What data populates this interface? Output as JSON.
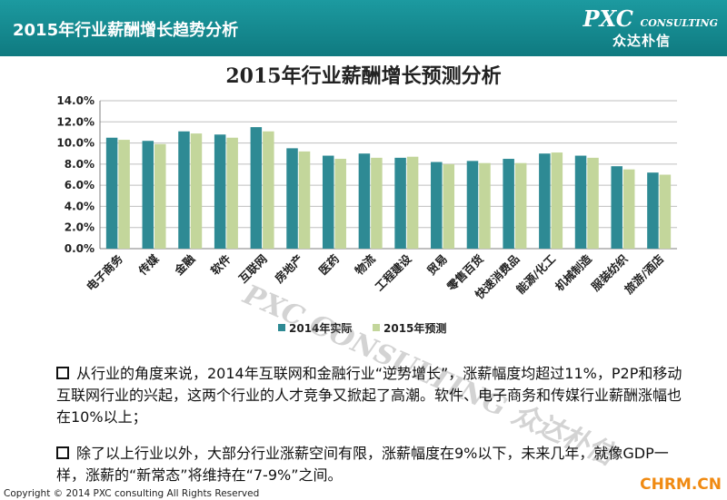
{
  "header": {
    "title": "2015年行业薪酬增长趋势分析",
    "logo_main": "PXC",
    "logo_tag": "CONSULTING",
    "logo_sub": "众达朴信"
  },
  "chart_data": {
    "type": "bar",
    "title": "2015年行业薪酬增长预测分析",
    "xlabel": "",
    "ylabel": "",
    "ylim": [
      0,
      14
    ],
    "yticks": [
      "0.0%",
      "2.0%",
      "4.0%",
      "6.0%",
      "8.0%",
      "10.0%",
      "12.0%",
      "14.0%"
    ],
    "ytick_values": [
      0,
      2,
      4,
      6,
      8,
      10,
      12,
      14
    ],
    "grid": true,
    "legend_position": "bottom",
    "categories": [
      "电子商务",
      "传媒",
      "金融",
      "软件",
      "互联网",
      "房地产",
      "医药",
      "物流",
      "工程建设",
      "贸易",
      "零售百货",
      "快速消费品",
      "能源/化工",
      "机械制造",
      "服装纺织",
      "旅游/酒店"
    ],
    "series": [
      {
        "name": "2014年实际",
        "color": "#2e8a94",
        "values": [
          10.5,
          10.2,
          11.1,
          10.8,
          11.5,
          9.5,
          8.8,
          9.0,
          8.6,
          8.2,
          8.3,
          8.5,
          9.0,
          8.8,
          7.8,
          7.2
        ]
      },
      {
        "name": "2015年预测",
        "color": "#c3d69b",
        "values": [
          10.3,
          9.9,
          10.9,
          10.5,
          11.1,
          9.2,
          8.5,
          8.6,
          8.7,
          8.0,
          8.1,
          8.1,
          9.1,
          8.6,
          7.5,
          7.0
        ]
      }
    ]
  },
  "watermark": {
    "text": "PXC CONSULTING 众达朴信"
  },
  "paragraphs": [
    {
      "text": "从行业的角度来说，2014年互联网和金融行业“逆势增长”，涨薪幅度均超过11%，P2P和移动互联网行业的兴起，这两个行业的人才竞争又掀起了高潮。软件、电子商务和传媒行业薪酬涨幅也在10%以上；"
    },
    {
      "text": "除了以上行业以外，大部分行业涨薪空间有限，涨薪幅度在9%以下，未来几年，就像GDP一样，涨薪的“新常态”将维持在“7-9%”之间。"
    }
  ],
  "footer": {
    "copyright": "Copyright © 2014 PXC consulting All Rights Reserved",
    "site": "CHRM.CN"
  }
}
